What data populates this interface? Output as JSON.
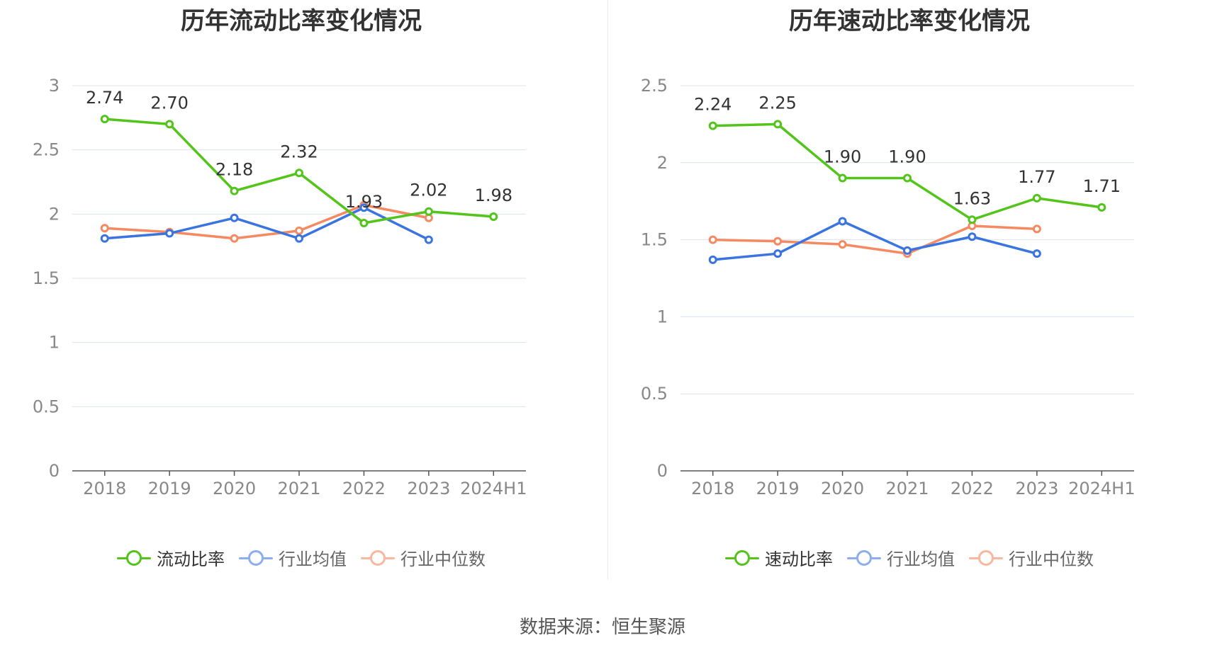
{
  "source": "数据来源：恒生聚源",
  "colors": {
    "main": "#52c41a",
    "avg": "#3a74e0",
    "median": "#f58a62",
    "grid": "#dde3f0",
    "axis": "#888888"
  },
  "legend_colors": {
    "main": "#52c41a",
    "avg": "#8aaef0",
    "median": "#f8b79f"
  },
  "chart_data": [
    {
      "type": "line",
      "title": "历年流动比率变化情况",
      "categories": [
        "2018",
        "2019",
        "2020",
        "2021",
        "2022",
        "2023",
        "2024H1"
      ],
      "ylim": [
        0,
        3
      ],
      "yticks": [
        "0",
        "0.5",
        "1",
        "1.5",
        "2",
        "2.5",
        "3"
      ],
      "ytick_values": [
        0,
        0.5,
        1,
        1.5,
        2,
        2.5,
        3
      ],
      "grid": true,
      "legend_position": "bottom",
      "series": [
        {
          "name": "流动比率",
          "key": "main",
          "values": [
            2.74,
            2.7,
            2.18,
            2.32,
            1.93,
            2.02,
            1.98
          ],
          "labels": [
            "2.74",
            "2.70",
            "2.18",
            "2.32",
            "1.93",
            "2.02",
            "1.98"
          ]
        },
        {
          "name": "行业均值",
          "key": "avg",
          "values": [
            1.81,
            1.85,
            1.97,
            1.81,
            2.05,
            1.8,
            null
          ]
        },
        {
          "name": "行业中位数",
          "key": "median",
          "values": [
            1.89,
            1.86,
            1.81,
            1.87,
            2.07,
            1.97,
            null
          ]
        }
      ]
    },
    {
      "type": "line",
      "title": "历年速动比率变化情况",
      "categories": [
        "2018",
        "2019",
        "2020",
        "2021",
        "2022",
        "2023",
        "2024H1"
      ],
      "ylim": [
        0,
        2.5
      ],
      "yticks": [
        "0",
        "0.5",
        "1",
        "1.5",
        "2",
        "2.5"
      ],
      "ytick_values": [
        0,
        0.5,
        1,
        1.5,
        2,
        2.5
      ],
      "grid": true,
      "legend_position": "bottom",
      "series": [
        {
          "name": "速动比率",
          "key": "main",
          "values": [
            2.24,
            2.25,
            1.9,
            1.9,
            1.63,
            1.77,
            1.71
          ],
          "labels": [
            "2.24",
            "2.25",
            "1.90",
            "1.90",
            "1.63",
            "1.77",
            "1.71"
          ]
        },
        {
          "name": "行业均值",
          "key": "avg",
          "values": [
            1.37,
            1.41,
            1.62,
            1.43,
            1.52,
            1.41,
            null
          ]
        },
        {
          "name": "行业中位数",
          "key": "median",
          "values": [
            1.5,
            1.49,
            1.47,
            1.41,
            1.59,
            1.57,
            null
          ]
        }
      ]
    }
  ]
}
